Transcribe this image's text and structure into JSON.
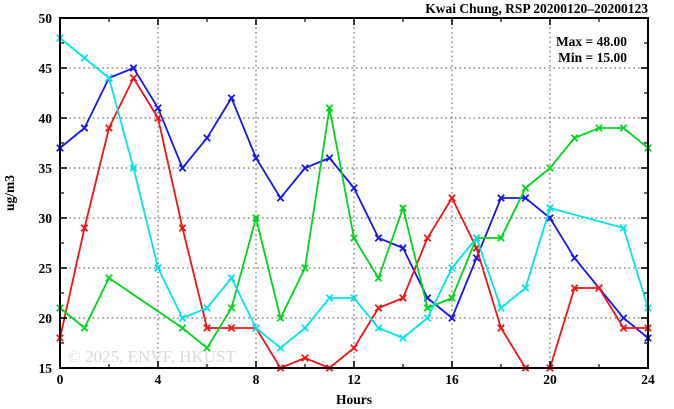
{
  "title": "Kwai Chung, RSP 20200120–20200123",
  "stats": {
    "max_label": "Max = 48.00",
    "min_label": "Min = 15.00"
  },
  "watermark": "© 2025, ENVF, HKUST",
  "axes": {
    "ylabel": "ug/m3",
    "xlabel": "Hours"
  },
  "colors": {
    "frame": "#000000",
    "grid": "#444444",
    "watermark": "#d9d9d9",
    "series1": "#1717e8",
    "series2": "#f01414",
    "series3": "#00d41e",
    "series4": "#00e6e6"
  },
  "chart_data": {
    "type": "line",
    "title": "Kwai Chung, RSP 20200120–20200123",
    "xlabel": "Hours",
    "ylabel": "ug/m3",
    "xlim": [
      0,
      24
    ],
    "ylim": [
      15,
      50
    ],
    "x_major_ticks": [
      0,
      4,
      8,
      12,
      16,
      20,
      24
    ],
    "x_minor_step": 2,
    "y_major_ticks": [
      15,
      20,
      25,
      30,
      35,
      40,
      45,
      50
    ],
    "y_minor_step": 2.5,
    "grid": "dotted lines at major ticks, both axes",
    "legend_position": "none",
    "marker": "x-cross",
    "annotations": [
      "Max = 48.00",
      "Min = 15.00"
    ],
    "x": [
      0,
      1,
      2,
      3,
      4,
      5,
      6,
      7,
      8,
      9,
      10,
      11,
      12,
      13,
      14,
      15,
      16,
      17,
      18,
      19,
      20,
      21,
      22,
      23,
      24
    ],
    "series": [
      {
        "name": "station-series-blue",
        "color": "#1717e8",
        "values": [
          37,
          39,
          44,
          45,
          41,
          35,
          38,
          42,
          36,
          32,
          35,
          36,
          33,
          28,
          27,
          22,
          20,
          26,
          32,
          32,
          30,
          26,
          23,
          20,
          18
        ]
      },
      {
        "name": "station-series-red",
        "color": "#f01414",
        "values": [
          18,
          29,
          39,
          44,
          40,
          29,
          19,
          19,
          19,
          15,
          16,
          15,
          17,
          21,
          22,
          28,
          32,
          27,
          19,
          15,
          15,
          23,
          23,
          19,
          19
        ]
      },
      {
        "name": "station-series-green",
        "color": "#00d41e",
        "values": [
          21,
          19,
          24,
          null,
          null,
          19,
          17,
          21,
          30,
          20,
          25,
          41,
          28,
          24,
          31,
          21,
          22,
          28,
          28,
          33,
          35,
          38,
          39,
          39,
          37
        ]
      },
      {
        "name": "station-series-cyan",
        "color": "#00e6e6",
        "values": [
          48,
          46,
          44,
          35,
          25,
          20,
          21,
          24,
          19,
          17,
          19,
          22,
          22,
          19,
          18,
          20,
          25,
          28,
          21,
          23,
          31,
          null,
          null,
          29,
          21
        ]
      }
    ]
  }
}
